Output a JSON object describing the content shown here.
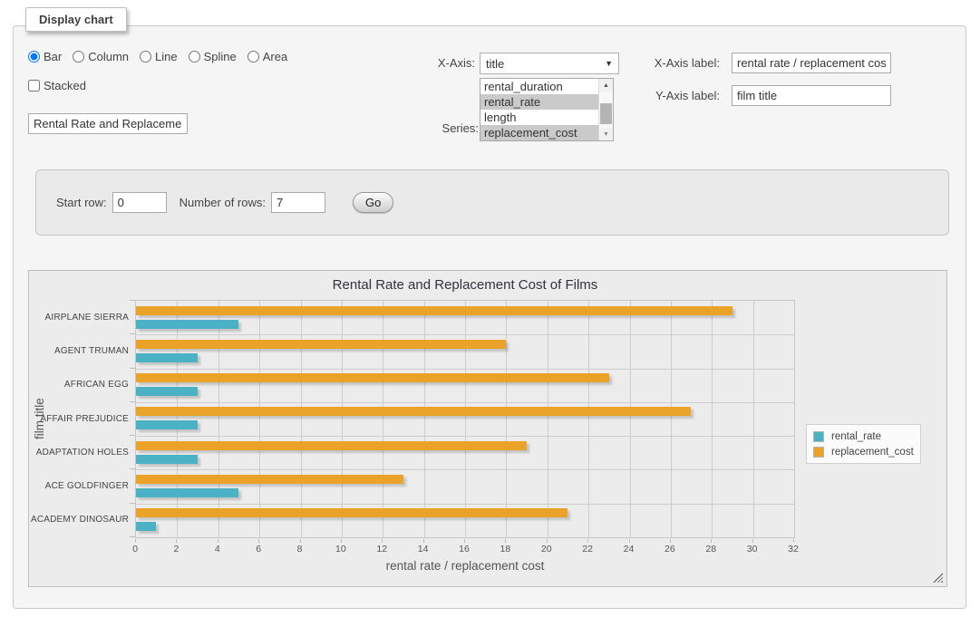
{
  "panel": {
    "legend": "Display chart"
  },
  "chart_type": {
    "options": [
      {
        "label": "Bar",
        "selected": true
      },
      {
        "label": "Column",
        "selected": false
      },
      {
        "label": "Line",
        "selected": false
      },
      {
        "label": "Spline",
        "selected": false
      },
      {
        "label": "Area",
        "selected": false
      }
    ]
  },
  "stacked": {
    "label": "Stacked",
    "checked": false
  },
  "chart_title_input": {
    "value": "Rental Rate and Replacemer"
  },
  "x_axis_select": {
    "label": "X-Axis:",
    "selected_value": "title"
  },
  "series_list": {
    "label": "Series:",
    "options": [
      {
        "label": "rental_duration",
        "selected": false
      },
      {
        "label": "rental_rate",
        "selected": true
      },
      {
        "label": "length",
        "selected": false
      },
      {
        "label": "replacement_cost",
        "selected": true
      }
    ]
  },
  "x_axis_label_field": {
    "label": "X-Axis label:",
    "value": "rental rate / replacement cost"
  },
  "y_axis_label_field": {
    "label": "Y-Axis label:",
    "value": "film title"
  },
  "rows_panel": {
    "start_row_label": "Start row:",
    "start_row_value": "0",
    "num_rows_label": "Number of rows:",
    "num_rows_value": "7",
    "go_label": "Go"
  },
  "chart_data": {
    "type": "bar",
    "orientation": "horizontal",
    "title": "Rental Rate and Replacement Cost of Films",
    "xlabel": "rental rate / replacement cost",
    "ylabel": "film title",
    "categories": [
      "AIRPLANE SIERRA",
      "AGENT TRUMAN",
      "AFRICAN EGG",
      "AFFAIR PREJUDICE",
      "ADAPTATION HOLES",
      "ACE GOLDFINGER",
      "ACADEMY DINOSAUR"
    ],
    "series": [
      {
        "name": "rental_rate",
        "color": "#4bb2c5",
        "values": [
          4.99,
          2.99,
          2.99,
          2.99,
          2.99,
          4.99,
          0.99
        ]
      },
      {
        "name": "replacement_cost",
        "color": "#eaa228",
        "values": [
          28.99,
          17.99,
          22.99,
          26.99,
          18.99,
          12.99,
          20.99
        ]
      }
    ],
    "xlim": [
      0,
      32
    ],
    "xticks": [
      0,
      2,
      4,
      6,
      8,
      10,
      12,
      14,
      16,
      18,
      20,
      22,
      24,
      26,
      28,
      30,
      32
    ],
    "grid": true,
    "legend_position": "right"
  }
}
